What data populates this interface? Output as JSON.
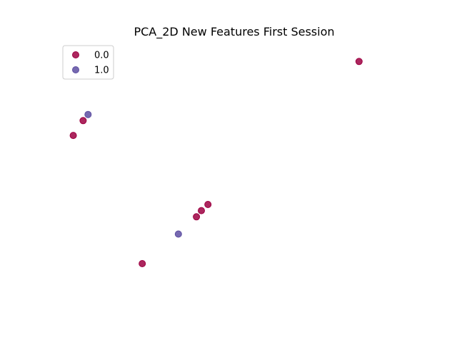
{
  "chart_data": {
    "type": "scatter",
    "title": "PCA_2D New Features First Session",
    "xlabel": "",
    "ylabel": "",
    "axes_visible": false,
    "grid": false,
    "xlim": [
      0,
      10
    ],
    "ylim": [
      0,
      10
    ],
    "legend": {
      "placement": "top-left"
    },
    "series": [
      {
        "name": "0.0",
        "color": "#9e0142",
        "points": [
          {
            "x": 8.8,
            "y": 9.5
          },
          {
            "x": 0.4,
            "y": 7.1
          },
          {
            "x": 0.1,
            "y": 6.5
          },
          {
            "x": 4.2,
            "y": 3.7
          },
          {
            "x": 4.0,
            "y": 3.45
          },
          {
            "x": 3.85,
            "y": 3.2
          },
          {
            "x": 2.2,
            "y": 1.3
          }
        ]
      },
      {
        "name": "1.0",
        "color": "#5e4fa2",
        "points": [
          {
            "x": 0.55,
            "y": 7.35
          },
          {
            "x": 3.3,
            "y": 2.5
          }
        ]
      }
    ]
  }
}
